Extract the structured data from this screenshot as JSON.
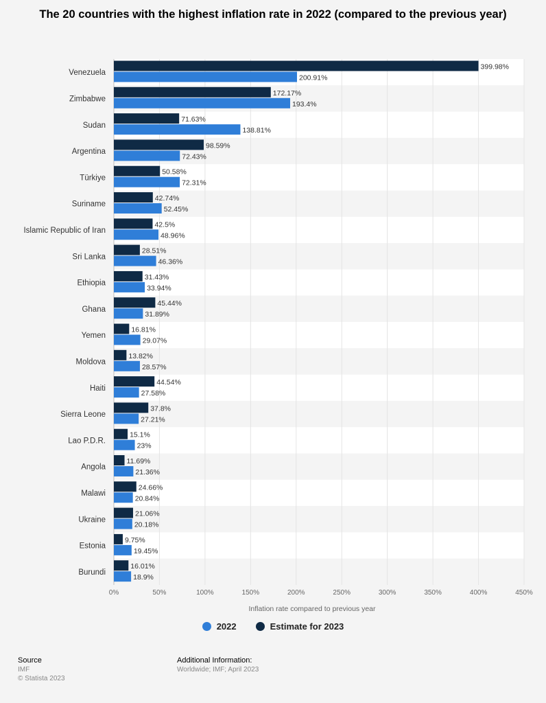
{
  "title": "The 20 countries with the highest inflation rate in 2022 (compared to the previous year)",
  "colors": {
    "series_2022": "#2f7ed8",
    "series_2023": "#0f2a45"
  },
  "legend": {
    "item_2022": "2022",
    "item_2023": "Estimate for 2023"
  },
  "footer": {
    "source_label": "Source",
    "source_value": "IMF",
    "copyright": "© Statista 2023",
    "additional_label": "Additional Information:",
    "additional_value": "Worldwide; IMF; April 2023"
  },
  "chart_data": {
    "type": "bar",
    "orientation": "horizontal",
    "xlabel": "Inflation rate compared to previous year",
    "xlim": [
      0,
      450
    ],
    "x_ticks": [
      "0%",
      "50%",
      "100%",
      "150%",
      "200%",
      "250%",
      "300%",
      "350%",
      "400%",
      "450%"
    ],
    "categories": [
      "Venezuela",
      "Zimbabwe",
      "Sudan",
      "Argentina",
      "Türkiye",
      "Suriname",
      "Islamic Republic of Iran",
      "Sri Lanka",
      "Ethiopia",
      "Ghana",
      "Yemen",
      "Moldova",
      "Haiti",
      "Sierra Leone",
      "Lao P.D.R.",
      "Angola",
      "Malawi",
      "Ukraine",
      "Estonia",
      "Burundi"
    ],
    "series": [
      {
        "name": "Estimate for 2023",
        "values": [
          399.98,
          172.17,
          71.63,
          98.59,
          50.58,
          42.74,
          42.5,
          28.51,
          31.43,
          45.44,
          16.81,
          13.82,
          44.54,
          37.8,
          15.1,
          11.69,
          24.66,
          21.06,
          9.75,
          16.01
        ],
        "labels": [
          "399.98%",
          "172.17%",
          "71.63%",
          "98.59%",
          "50.58%",
          "42.74%",
          "42.5%",
          "28.51%",
          "31.43%",
          "45.44%",
          "16.81%",
          "13.82%",
          "44.54%",
          "37.8%",
          "15.1%",
          "11.69%",
          "24.66%",
          "21.06%",
          "9.75%",
          "16.01%"
        ]
      },
      {
        "name": "2022",
        "values": [
          200.91,
          193.4,
          138.81,
          72.43,
          72.31,
          52.45,
          48.96,
          46.36,
          33.94,
          31.89,
          29.07,
          28.57,
          27.58,
          27.21,
          23,
          21.36,
          20.84,
          20.18,
          19.45,
          18.9
        ],
        "labels": [
          "200.91%",
          "193.4%",
          "138.81%",
          "72.43%",
          "72.31%",
          "52.45%",
          "48.96%",
          "46.36%",
          "33.94%",
          "31.89%",
          "29.07%",
          "28.57%",
          "27.58%",
          "27.21%",
          "23%",
          "21.36%",
          "20.84%",
          "20.18%",
          "19.45%",
          "18.9%"
        ]
      }
    ],
    "legend_position": "bottom",
    "grid": true
  }
}
